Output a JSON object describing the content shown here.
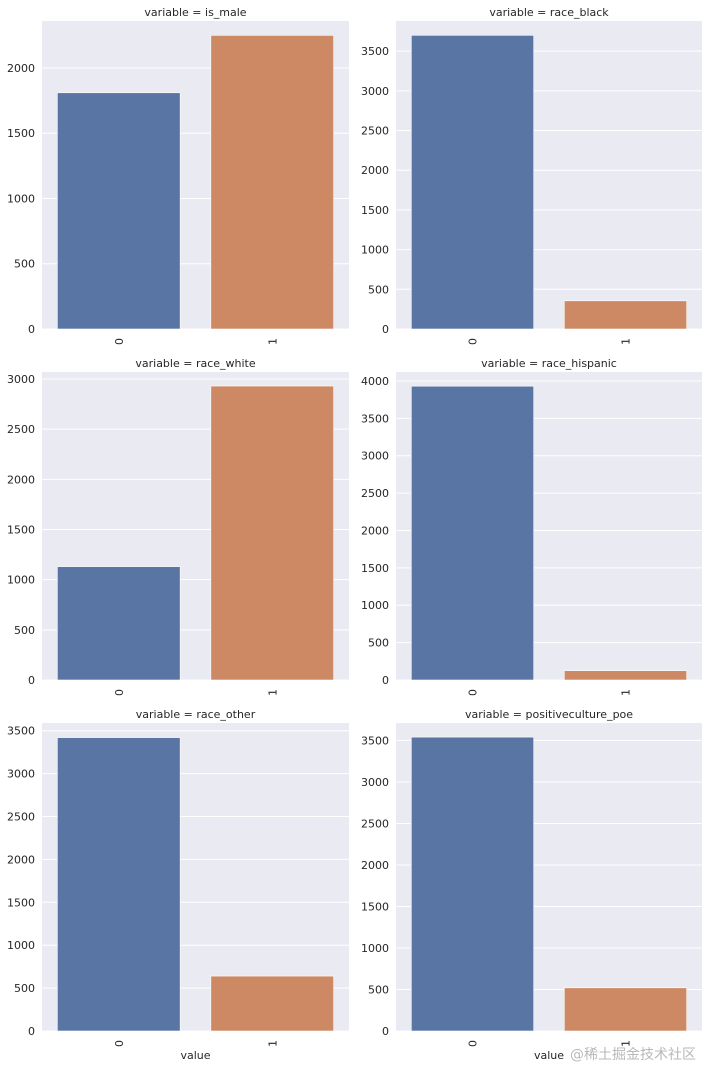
{
  "chart_data": [
    {
      "type": "bar",
      "title": "variable = is_male",
      "categories": [
        "0",
        "1"
      ],
      "values": [
        1810,
        2250
      ],
      "yticks": [
        0,
        500,
        1000,
        1500,
        2000
      ],
      "ylim": [
        0,
        2360
      ],
      "xlabel": "",
      "ylabel": ""
    },
    {
      "type": "bar",
      "title": "variable = race_black",
      "categories": [
        "0",
        "1"
      ],
      "values": [
        3700,
        355
      ],
      "yticks": [
        0,
        500,
        1000,
        1500,
        2000,
        2500,
        3000,
        3500
      ],
      "ylim": [
        0,
        3880
      ],
      "xlabel": "",
      "ylabel": ""
    },
    {
      "type": "bar",
      "title": "variable = race_white",
      "categories": [
        "0",
        "1"
      ],
      "values": [
        1130,
        2930
      ],
      "yticks": [
        0,
        500,
        1000,
        1500,
        2000,
        2500,
        3000
      ],
      "ylim": [
        0,
        3070
      ],
      "xlabel": "",
      "ylabel": ""
    },
    {
      "type": "bar",
      "title": "variable = race_hispanic",
      "categories": [
        "0",
        "1"
      ],
      "values": [
        3930,
        125
      ],
      "yticks": [
        0,
        500,
        1000,
        1500,
        2000,
        2500,
        3000,
        3500,
        4000
      ],
      "ylim": [
        0,
        4120
      ],
      "xlabel": "",
      "ylabel": ""
    },
    {
      "type": "bar",
      "title": "variable = race_other",
      "categories": [
        "0",
        "1"
      ],
      "values": [
        3420,
        640
      ],
      "yticks": [
        0,
        500,
        1000,
        1500,
        2000,
        2500,
        3000,
        3500
      ],
      "ylim": [
        0,
        3590
      ],
      "xlabel": "value",
      "ylabel": ""
    },
    {
      "type": "bar",
      "title": "variable = positiveculture_poe",
      "categories": [
        "0",
        "1"
      ],
      "values": [
        3540,
        520
      ],
      "yticks": [
        0,
        500,
        1000,
        1500,
        2000,
        2500,
        3000,
        3500
      ],
      "ylim": [
        0,
        3710
      ],
      "xlabel": "value",
      "ylabel": ""
    }
  ],
  "colors": {
    "series_0": "#5975a4",
    "series_1": "#cc8963",
    "panel_bg": "#eaeaf2",
    "grid": "#ffffff"
  },
  "watermark": "@稀土掘金技术社区"
}
